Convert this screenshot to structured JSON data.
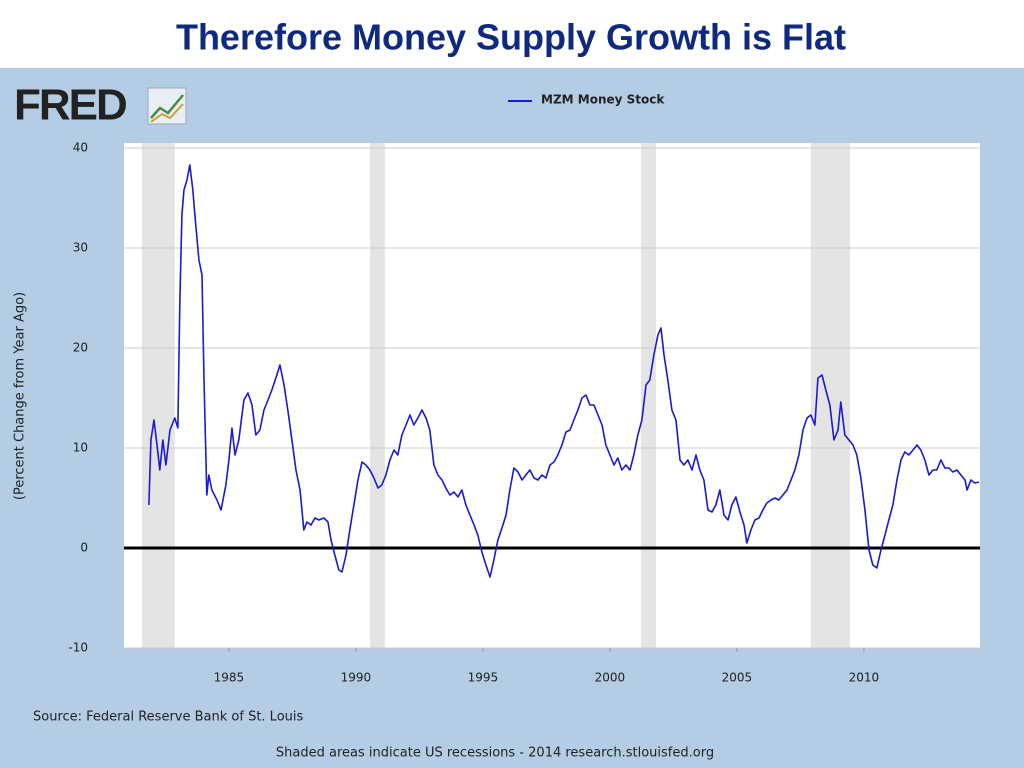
{
  "title": "Therefore Money Supply Growth is Flat",
  "logo": "FRED",
  "chart_data": {
    "type": "line",
    "ylabel": "(Percent Change from Year Ago)",
    "source": "Source: Federal Reserve Bank of St. Louis",
    "footnote": "Shaded areas indicate US recessions - 2014 research.stlouisfed.org",
    "xlim": [
      1980.87,
      2014.57
    ],
    "xticks": [
      1985,
      1990,
      1995,
      2000,
      2005,
      2010
    ],
    "ylim": [
      -10,
      40
    ],
    "yticks": [
      -10,
      0,
      10,
      20,
      30,
      40
    ],
    "grid": true,
    "legend": "top",
    "reference_line": 0,
    "recessions": [
      [
        1981.58,
        1982.87
      ],
      [
        1990.55,
        1991.14
      ],
      [
        2001.22,
        2001.81
      ],
      [
        2007.91,
        2009.45
      ]
    ],
    "x": [
      1981.85,
      1981.93,
      1982.05,
      1982.17,
      1982.28,
      1982.4,
      1982.52,
      1982.68,
      1982.87,
      1982.99,
      1983.07,
      1983.15,
      1983.23,
      1983.35,
      1983.46,
      1983.58,
      1983.66,
      1983.82,
      1983.94,
      1984.02,
      1984.13,
      1984.21,
      1984.33,
      1984.53,
      1984.69,
      1984.88,
      1985.0,
      1985.12,
      1985.24,
      1985.39,
      1985.59,
      1985.75,
      1985.91,
      1986.06,
      1986.22,
      1986.38,
      1986.54,
      1986.69,
      1986.85,
      1987.01,
      1987.17,
      1987.32,
      1987.48,
      1987.64,
      1987.8,
      1987.95,
      1988.07,
      1988.23,
      1988.39,
      1988.54,
      1988.74,
      1988.9,
      1989.02,
      1989.17,
      1989.33,
      1989.45,
      1989.61,
      1989.76,
      1989.92,
      1990.08,
      1990.24,
      1990.39,
      1990.55,
      1990.71,
      1990.87,
      1991.02,
      1991.18,
      1991.34,
      1991.5,
      1991.65,
      1991.81,
      1991.97,
      1992.13,
      1992.28,
      1992.44,
      1992.6,
      1992.76,
      1992.91,
      1993.07,
      1993.23,
      1993.39,
      1993.54,
      1993.7,
      1993.86,
      1994.02,
      1994.17,
      1994.33,
      1994.49,
      1994.65,
      1994.8,
      1994.96,
      1995.12,
      1995.28,
      1995.43,
      1995.59,
      1995.75,
      1995.91,
      1996.06,
      1996.22,
      1996.38,
      1996.54,
      1996.69,
      1996.85,
      1997.01,
      1997.17,
      1997.32,
      1997.48,
      1997.64,
      1997.8,
      1997.95,
      1998.11,
      1998.27,
      1998.43,
      1998.58,
      1998.74,
      1998.9,
      1999.06,
      1999.21,
      1999.37,
      1999.53,
      1999.69,
      1999.84,
      2000.0,
      2000.16,
      2000.31,
      2000.47,
      2000.63,
      2000.79,
      2000.94,
      2001.1,
      2001.26,
      2001.42,
      2001.57,
      2001.73,
      2001.89,
      2002.01,
      2002.13,
      2002.28,
      2002.44,
      2002.6,
      2002.76,
      2002.91,
      2003.07,
      2003.23,
      2003.39,
      2003.54,
      2003.7,
      2003.86,
      2004.02,
      2004.17,
      2004.33,
      2004.49,
      2004.65,
      2004.8,
      2004.96,
      2005.12,
      2005.28,
      2005.39,
      2005.55,
      2005.71,
      2005.87,
      2006.02,
      2006.18,
      2006.34,
      2006.5,
      2006.65,
      2006.81,
      2006.97,
      2007.13,
      2007.28,
      2007.44,
      2007.6,
      2007.76,
      2007.91,
      2008.07,
      2008.19,
      2008.35,
      2008.5,
      2008.66,
      2008.82,
      2008.98,
      2009.09,
      2009.25,
      2009.41,
      2009.57,
      2009.72,
      2009.88,
      2010.04,
      2010.2,
      2010.35,
      2010.51,
      2010.67,
      2010.83,
      2010.98,
      2011.14,
      2011.3,
      2011.46,
      2011.61,
      2011.77,
      2011.93,
      2012.09,
      2012.24,
      2012.4,
      2012.56,
      2012.72,
      2012.87,
      2013.03,
      2013.19,
      2013.35,
      2013.5,
      2013.66,
      2013.82,
      2013.98,
      2014.06,
      2014.21,
      2014.37,
      2014.53
    ],
    "series": [
      {
        "name": "MZM Money Stock",
        "color": "#1a1ad4",
        "values": [
          4.3,
          10.8,
          12.8,
          10.3,
          7.8,
          10.8,
          8.3,
          11.8,
          13,
          12,
          24.8,
          33.3,
          35.8,
          36.8,
          38.3,
          35.8,
          33.3,
          28.8,
          27.3,
          16.8,
          5.3,
          7.3,
          5.8,
          4.8,
          3.8,
          6.3,
          8.8,
          12,
          9.3,
          10.8,
          14.8,
          15.5,
          14.3,
          11.3,
          11.8,
          13.8,
          14.8,
          15.8,
          17,
          18.3,
          16.3,
          13.8,
          10.8,
          7.8,
          5.8,
          1.8,
          2.6,
          2.3,
          3,
          2.8,
          3,
          2.6,
          0.8,
          -0.7,
          -2.2,
          -2.4,
          -0.7,
          1.8,
          4.3,
          6.8,
          8.6,
          8.3,
          7.8,
          7,
          6,
          6.3,
          7.3,
          8.8,
          9.8,
          9.3,
          11.3,
          12.3,
          13.3,
          12.3,
          13,
          13.8,
          13,
          11.8,
          8.3,
          7.3,
          6.8,
          6,
          5.3,
          5.6,
          5.1,
          5.8,
          4.3,
          3.3,
          2.3,
          1.3,
          -0.4,
          -1.7,
          -2.9,
          -1.2,
          0.8,
          2,
          3.3,
          5.8,
          8,
          7.6,
          6.8,
          7.3,
          7.8,
          7,
          6.8,
          7.3,
          7,
          8.3,
          8.6,
          9.3,
          10.3,
          11.6,
          11.8,
          12.8,
          13.8,
          15,
          15.3,
          14.3,
          14.3,
          13.3,
          12.3,
          10.3,
          9.3,
          8.3,
          9,
          7.8,
          8.3,
          7.8,
          9.3,
          11.3,
          12.8,
          16.3,
          16.8,
          19.3,
          21.3,
          22,
          19.3,
          16.8,
          13.8,
          12.8,
          8.8,
          8.3,
          8.8,
          7.8,
          9.3,
          7.8,
          6.8,
          3.8,
          3.6,
          4.3,
          5.8,
          3.3,
          2.8,
          4.3,
          5.1,
          3.6,
          2.3,
          0.5,
          1.8,
          2.8,
          3,
          3.8,
          4.5,
          4.8,
          5,
          4.8,
          5.3,
          5.8,
          6.8,
          7.8,
          9.3,
          11.8,
          13,
          13.3,
          12.3,
          17,
          17.3,
          15.8,
          14.3,
          10.8,
          11.8,
          14.6,
          11.3,
          10.8,
          10.3,
          9.3,
          7,
          3.8,
          -0.2,
          -1.7,
          -2,
          -0.2,
          1.3,
          2.8,
          4.3,
          6.8,
          8.8,
          9.6,
          9.3,
          9.8,
          10.3,
          9.8,
          8.8,
          7.3,
          7.8,
          7.8,
          8.8,
          8,
          8,
          7.6,
          7.8,
          7.3,
          6.8,
          5.8,
          6.8,
          6.5,
          6.6
        ]
      }
    ]
  }
}
